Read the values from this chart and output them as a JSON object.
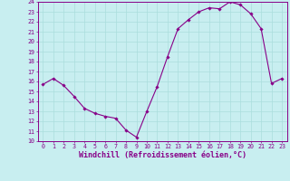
{
  "x": [
    0,
    1,
    2,
    3,
    4,
    5,
    6,
    7,
    8,
    9,
    10,
    11,
    12,
    13,
    14,
    15,
    16,
    17,
    18,
    19,
    20,
    21,
    22,
    23
  ],
  "y": [
    15.7,
    16.3,
    15.6,
    14.5,
    13.3,
    12.8,
    12.5,
    12.3,
    11.1,
    10.4,
    13.0,
    15.5,
    18.5,
    21.3,
    22.2,
    23.0,
    23.4,
    23.3,
    24.0,
    23.7,
    22.8,
    21.3,
    15.8,
    16.3
  ],
  "line_color": "#880088",
  "marker_color": "#880088",
  "bg_color": "#c8eef0",
  "grid_color": "#aadddd",
  "xlabel": "Windchill (Refroidissement éolien,°C)",
  "ylim": [
    10,
    24
  ],
  "xlim_min": -0.5,
  "xlim_max": 23.5,
  "yticks": [
    10,
    11,
    12,
    13,
    14,
    15,
    16,
    17,
    18,
    19,
    20,
    21,
    22,
    23,
    24
  ],
  "xticks": [
    0,
    1,
    2,
    3,
    4,
    5,
    6,
    7,
    8,
    9,
    10,
    11,
    12,
    13,
    14,
    15,
    16,
    17,
    18,
    19,
    20,
    21,
    22,
    23
  ],
  "tick_fontsize": 4.8,
  "label_fontsize": 6.0,
  "font_color": "#880088",
  "spine_color": "#880088"
}
